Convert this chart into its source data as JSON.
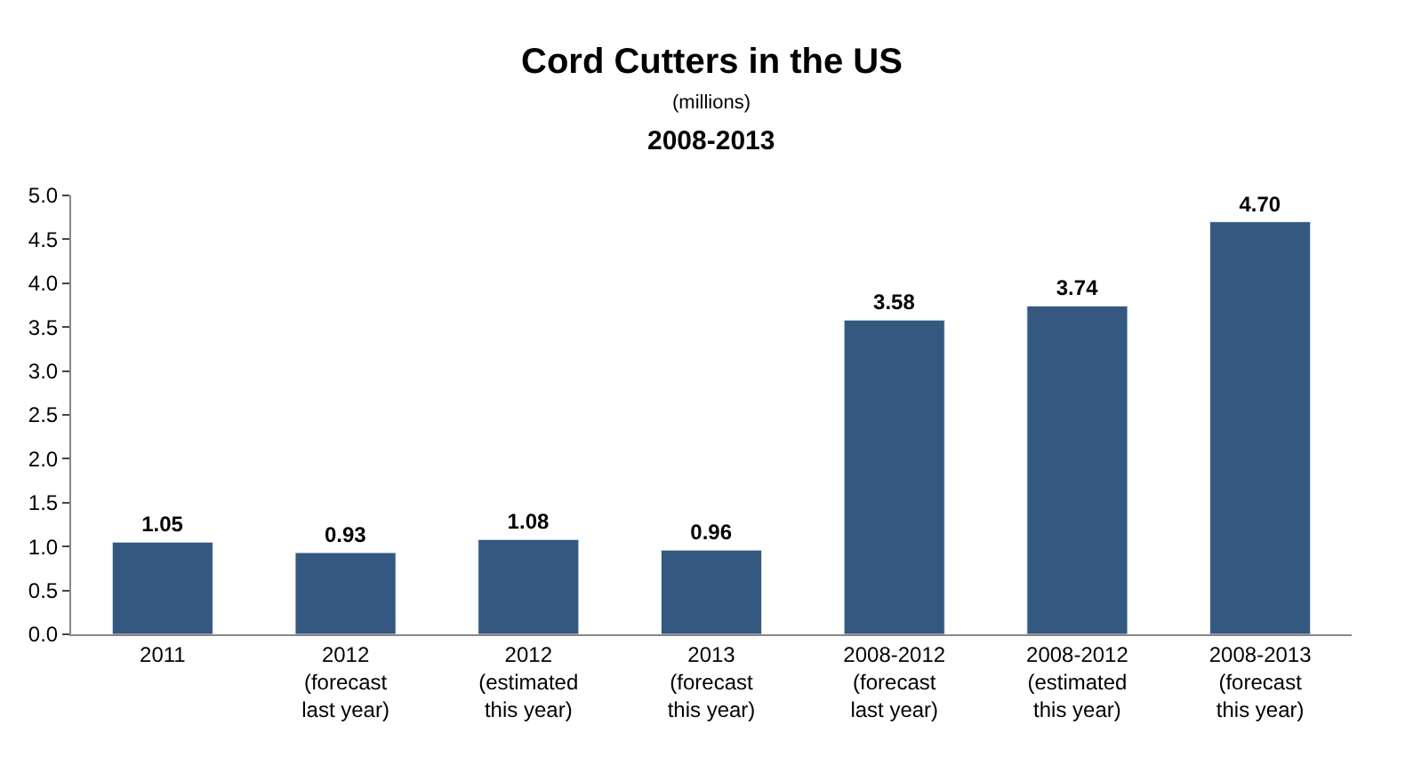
{
  "chart_data": {
    "type": "bar",
    "title": "Cord Cutters in the US",
    "subtitle": "(millions)",
    "annotations": [
      "2008-2013"
    ],
    "categories": [
      "2011",
      "2012\n(forecast\nlast year)",
      "2012\n(estimated\nthis year)",
      "2013\n(forecast\nthis year)",
      "2008-2012\n(forecast\nlast year)",
      "2008-2012\n(estimated\nthis year)",
      "2008-2013\n(forecast\nthis year)"
    ],
    "values": [
      1.05,
      0.93,
      1.08,
      0.96,
      3.58,
      3.74,
      4.7
    ],
    "value_labels": [
      "1.05",
      "0.93",
      "1.08",
      "0.96",
      "3.58",
      "3.74",
      "4.70"
    ],
    "color": "#34587f",
    "ylim": [
      0,
      5
    ],
    "yticks": [
      {
        "value": 0,
        "label": "0.0"
      },
      {
        "value": 0.5,
        "label": "0.5"
      },
      {
        "value": 1,
        "label": "1.0"
      },
      {
        "value": 1.5,
        "label": "1.5"
      },
      {
        "value": 2,
        "label": "2.0"
      },
      {
        "value": 2.5,
        "label": "2.5"
      },
      {
        "value": 3,
        "label": "3.0"
      },
      {
        "value": 3.5,
        "label": "3.5"
      },
      {
        "value": 4,
        "label": "4.0"
      },
      {
        "value": 4.5,
        "label": "4.5"
      },
      {
        "value": 5,
        "label": "5.0"
      }
    ],
    "legend": false
  }
}
